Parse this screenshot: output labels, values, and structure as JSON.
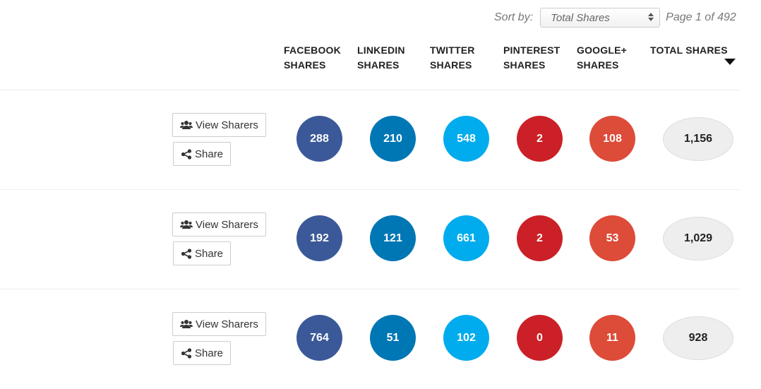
{
  "sort": {
    "label": "Sort by:",
    "selected": "Total Shares",
    "page_info": "Page 1 of 492"
  },
  "columns": [
    {
      "line1": "FACEBOOK",
      "line2": "SHARES"
    },
    {
      "line1": "LINKEDIN",
      "line2": "SHARES"
    },
    {
      "line1": "TWITTER",
      "line2": "SHARES"
    },
    {
      "line1": "PINTEREST",
      "line2": "SHARES"
    },
    {
      "line1": "GOOGLE+",
      "line2": "SHARES"
    },
    {
      "line1": "TOTAL SHARES",
      "line2": ""
    }
  ],
  "colors": {
    "facebook": "#3b5998",
    "linkedin": "#0077b5",
    "twitter": "#00aced",
    "pinterest": "#cb2027",
    "googleplus": "#dd4b39",
    "total_bg": "#eeeeee"
  },
  "buttons": {
    "view_sharers": "View Sharers",
    "share": "Share",
    "view_icon": "users-icon",
    "share_icon": "share-icon"
  },
  "rows": [
    {
      "facebook": "288",
      "linkedin": "210",
      "twitter": "548",
      "pinterest": "2",
      "googleplus": "108",
      "total": "1,156"
    },
    {
      "facebook": "192",
      "linkedin": "121",
      "twitter": "661",
      "pinterest": "2",
      "googleplus": "53",
      "total": "1,029"
    },
    {
      "facebook": "764",
      "linkedin": "51",
      "twitter": "102",
      "pinterest": "0",
      "googleplus": "11",
      "total": "928"
    }
  ]
}
